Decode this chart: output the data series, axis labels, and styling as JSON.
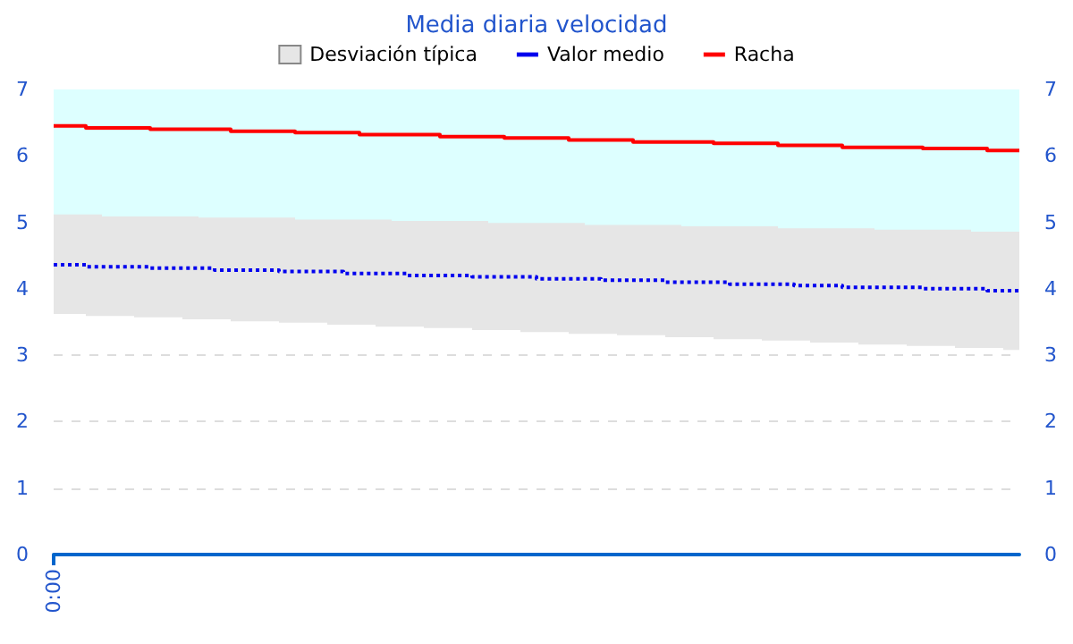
{
  "chart_data": {
    "type": "step",
    "title": "Media diaria velocidad",
    "categories": [
      "0:00",
      null,
      null,
      null,
      null,
      null,
      null,
      null,
      null,
      null,
      null,
      null,
      null,
      null,
      null,
      null,
      null,
      null,
      null,
      null,
      null,
      null,
      null,
      null,
      null,
      null,
      null,
      null,
      null,
      null,
      null,
      null,
      null,
      null,
      null,
      null,
      null,
      null,
      null,
      null,
      null,
      null,
      null,
      null,
      null,
      null,
      null,
      null,
      null,
      null,
      null,
      null,
      null,
      null,
      null,
      null,
      null,
      null,
      null,
      null,
      null
    ],
    "ylim": [
      0,
      7
    ],
    "yticks": [
      0,
      1,
      2,
      3,
      4,
      5,
      6,
      7
    ],
    "y2lim": [
      0,
      7
    ],
    "y2ticks": [
      0,
      1,
      2,
      3,
      4,
      5,
      6,
      7
    ],
    "grid": "y",
    "legend": "top",
    "marker": "none",
    "bands": [
      {
        "axis": "y",
        "from": 4.86,
        "to": 7,
        "color": "#ddffff"
      }
    ],
    "series": [
      {
        "name": "Desviación típica",
        "type": "area",
        "color": "#e6e6e6",
        "values": [
          null,
          null,
          null,
          null,
          null,
          null,
          null,
          null,
          null,
          null,
          null,
          null,
          null,
          null,
          null,
          null,
          null,
          null,
          null,
          null,
          null,
          null,
          null,
          null,
          null,
          null,
          null,
          null,
          null,
          null,
          null,
          null,
          null,
          null,
          null,
          null,
          null,
          null,
          null,
          null,
          null,
          null,
          null,
          null,
          null,
          null,
          null,
          null,
          null,
          null,
          null,
          null,
          null,
          null,
          null,
          null,
          null,
          null,
          null,
          null,
          null
        ],
        "lower": [
          3.62,
          3.62,
          3.59,
          3.59,
          3.59,
          3.57,
          3.57,
          3.57,
          3.54,
          3.54,
          3.54,
          3.51,
          3.51,
          3.51,
          3.49,
          3.49,
          3.49,
          3.46,
          3.46,
          3.46,
          3.43,
          3.43,
          3.43,
          3.41,
          3.41,
          3.41,
          3.38,
          3.38,
          3.38,
          3.35,
          3.35,
          3.35,
          3.32,
          3.32,
          3.32,
          3.3,
          3.3,
          3.3,
          3.27,
          3.27,
          3.27,
          3.24,
          3.24,
          3.24,
          3.22,
          3.22,
          3.22,
          3.19,
          3.19,
          3.19,
          3.16,
          3.16,
          3.16,
          3.14,
          3.14,
          3.14,
          3.11,
          3.11,
          3.11,
          3.08,
          3.08
        ],
        "upper": [
          5.12,
          5.12,
          5.12,
          5.09,
          5.09,
          5.09,
          5.09,
          5.09,
          5.09,
          5.07,
          5.07,
          5.07,
          5.07,
          5.07,
          5.07,
          5.04,
          5.04,
          5.04,
          5.04,
          5.04,
          5.04,
          5.02,
          5.02,
          5.02,
          5.02,
          5.02,
          5.02,
          4.99,
          4.99,
          4.99,
          4.99,
          4.99,
          4.99,
          4.96,
          4.96,
          4.96,
          4.96,
          4.96,
          4.96,
          4.94,
          4.94,
          4.94,
          4.94,
          4.94,
          4.94,
          4.91,
          4.91,
          4.91,
          4.91,
          4.91,
          4.91,
          4.89,
          4.89,
          4.89,
          4.89,
          4.89,
          4.89,
          4.86,
          4.86,
          4.86,
          4.86
        ]
      },
      {
        "name": "Valor medio",
        "color": "#0000ee",
        "line_style": "dotted",
        "values": [
          4.36,
          4.36,
          4.33,
          4.33,
          4.33,
          4.33,
          4.31,
          4.31,
          4.31,
          4.31,
          4.28,
          4.28,
          4.28,
          4.28,
          4.26,
          4.26,
          4.26,
          4.26,
          4.23,
          4.23,
          4.23,
          4.23,
          4.2,
          4.2,
          4.2,
          4.2,
          4.18,
          4.18,
          4.18,
          4.18,
          4.15,
          4.15,
          4.15,
          4.15,
          4.13,
          4.13,
          4.13,
          4.13,
          4.1,
          4.1,
          4.1,
          4.1,
          4.07,
          4.07,
          4.07,
          4.07,
          4.05,
          4.05,
          4.05,
          4.02,
          4.02,
          4.02,
          4.02,
          4.02,
          4.0,
          4.0,
          4.0,
          4.0,
          3.97,
          3.97,
          3.97
        ]
      },
      {
        "name": "Racha",
        "color": "#ff0000",
        "line_style": "solid",
        "values": [
          6.45,
          6.45,
          6.42,
          6.42,
          6.42,
          6.42,
          6.4,
          6.4,
          6.4,
          6.4,
          6.4,
          6.37,
          6.37,
          6.37,
          6.37,
          6.35,
          6.35,
          6.35,
          6.35,
          6.32,
          6.32,
          6.32,
          6.32,
          6.32,
          6.29,
          6.29,
          6.29,
          6.29,
          6.27,
          6.27,
          6.27,
          6.27,
          6.24,
          6.24,
          6.24,
          6.24,
          6.21,
          6.21,
          6.21,
          6.21,
          6.21,
          6.19,
          6.19,
          6.19,
          6.19,
          6.16,
          6.16,
          6.16,
          6.16,
          6.13,
          6.13,
          6.13,
          6.13,
          6.13,
          6.11,
          6.11,
          6.11,
          6.11,
          6.08,
          6.08,
          6.08
        ]
      }
    ]
  }
}
